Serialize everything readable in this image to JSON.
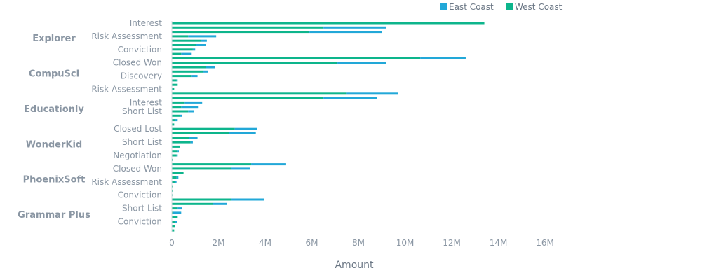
{
  "chart_data": {
    "type": "bar",
    "orientation": "horizontal",
    "stacked": true,
    "title": "",
    "xlabel": "Amount",
    "ylabel": "",
    "xlim": [
      0,
      16000000
    ],
    "x_ticks": [
      0,
      2000000,
      4000000,
      6000000,
      8000000,
      10000000,
      12000000,
      14000000,
      16000000
    ],
    "x_tick_labels": [
      "0",
      "2M",
      "4M",
      "6M",
      "8M",
      "10M",
      "12M",
      "14M",
      "16M"
    ],
    "grid": false,
    "legend_position": "top-right",
    "series": [
      {
        "name": "East Coast",
        "color": "#22a8d8"
      },
      {
        "name": "West Coast",
        "color": "#0db58c"
      }
    ],
    "groups": [
      {
        "name": "Explorer",
        "rows": [
          {
            "label": "Interest",
            "west": 13400000,
            "east": 0
          },
          {
            "label": "",
            "west": 6500000,
            "east": 2700000
          },
          {
            "label": "",
            "west": 5900000,
            "east": 3100000
          },
          {
            "label": "Risk Assessment",
            "west": 700000,
            "east": 1200000
          },
          {
            "label": "",
            "west": 1250000,
            "east": 250000
          },
          {
            "label": "",
            "west": 1050000,
            "east": 400000
          },
          {
            "label": "Conviction",
            "west": 900000,
            "east": 100000
          },
          {
            "label": "",
            "west": 400000,
            "east": 450000
          }
        ]
      },
      {
        "name": "CompuSci",
        "rows": [
          {
            "label": "",
            "west": 10650000,
            "east": 1950000
          },
          {
            "label": "Closed Won",
            "west": 7100000,
            "east": 2100000
          },
          {
            "label": "",
            "west": 1450000,
            "east": 400000
          },
          {
            "label": "",
            "west": 1350000,
            "east": 200000
          },
          {
            "label": "Discovery",
            "west": 850000,
            "east": 250000
          },
          {
            "label": "",
            "west": 200000,
            "east": 50000
          },
          {
            "label": "",
            "west": 250000,
            "east": 0
          },
          {
            "label": "Risk Assessment",
            "west": 100000,
            "east": 0
          }
        ]
      },
      {
        "name": "Educationly",
        "rows": [
          {
            "label": "",
            "west": 7500000,
            "east": 2200000
          },
          {
            "label": "",
            "west": 6500000,
            "east": 2300000
          },
          {
            "label": "Interest",
            "west": 550000,
            "east": 750000
          },
          {
            "label": "",
            "west": 400000,
            "east": 750000
          },
          {
            "label": "Short List",
            "west": 700000,
            "east": 250000
          },
          {
            "label": "",
            "west": 350000,
            "east": 100000
          },
          {
            "label": "",
            "west": 150000,
            "east": 100000
          },
          {
            "label": "",
            "west": 100000,
            "east": 0
          }
        ]
      },
      {
        "name": "WonderKid",
        "rows": [
          {
            "label": "Closed Lost",
            "west": 2700000,
            "east": 950000
          },
          {
            "label": "",
            "west": 2450000,
            "east": 1150000
          },
          {
            "label": "",
            "west": 750000,
            "east": 350000
          },
          {
            "label": "Short List",
            "west": 800000,
            "east": 100000
          },
          {
            "label": "",
            "west": 350000,
            "east": 0
          },
          {
            "label": "",
            "west": 250000,
            "east": 50000
          },
          {
            "label": "Negotiation",
            "west": 200000,
            "east": 50000
          },
          {
            "label": "",
            "west": 30000,
            "east": 0
          }
        ]
      },
      {
        "name": "PhoenixSoft",
        "rows": [
          {
            "label": "",
            "west": 3400000,
            "east": 1500000
          },
          {
            "label": "Closed Won",
            "west": 2550000,
            "east": 800000
          },
          {
            "label": "",
            "west": 500000,
            "east": 0
          },
          {
            "label": "",
            "west": 200000,
            "east": 80000
          },
          {
            "label": "Risk Assessment",
            "west": 120000,
            "east": 80000
          },
          {
            "label": "",
            "west": 60000,
            "east": 0
          },
          {
            "label": "",
            "west": 30000,
            "east": 0
          },
          {
            "label": "Conviction",
            "west": 15000,
            "east": 0
          }
        ]
      },
      {
        "name": "Grammar Plus",
        "rows": [
          {
            "label": "",
            "west": 2550000,
            "east": 1400000
          },
          {
            "label": "",
            "west": 1750000,
            "east": 600000
          },
          {
            "label": "Short List",
            "west": 250000,
            "east": 200000
          },
          {
            "label": "",
            "west": 50000,
            "east": 350000
          },
          {
            "label": "",
            "west": 250000,
            "east": 0
          },
          {
            "label": "Conviction",
            "west": 150000,
            "east": 80000
          },
          {
            "label": "",
            "west": 120000,
            "east": 0
          },
          {
            "label": "",
            "west": 100000,
            "east": 0
          }
        ]
      }
    ]
  }
}
